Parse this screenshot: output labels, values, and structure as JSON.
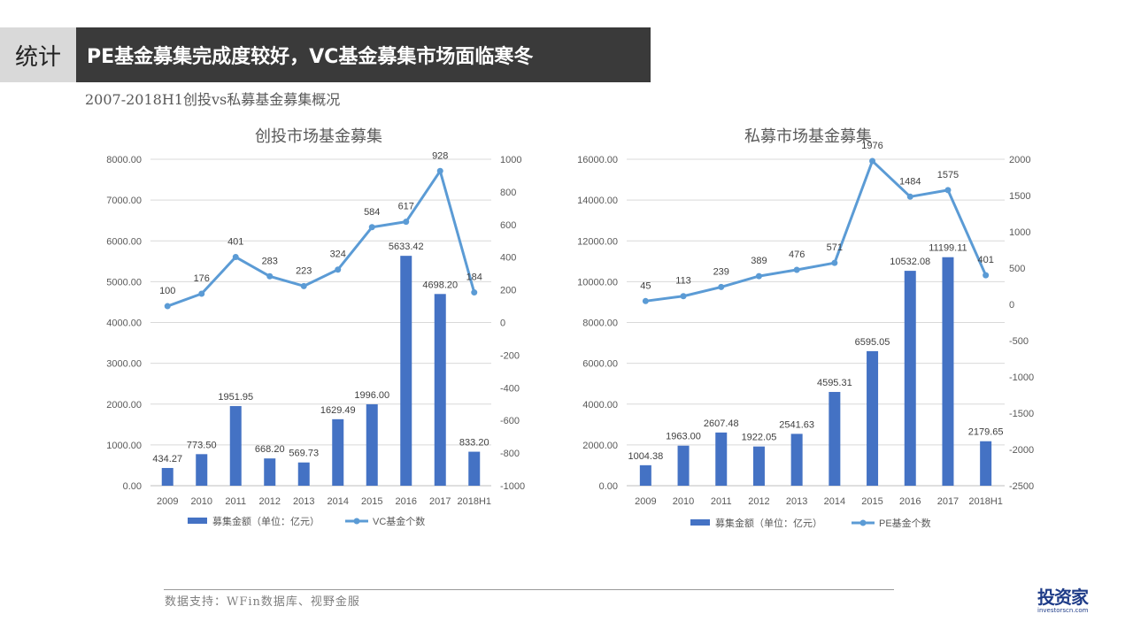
{
  "header": {
    "section_label": "统计",
    "title": "PE基金募集完成度较好，VC基金募集市场面临寒冬"
  },
  "subtitle": "2007-2018H1创投vs私募基金募集概况",
  "footer": {
    "source": "数据支持：WFin数据库、视野金服"
  },
  "logo": {
    "main": "投资家",
    "sub": "investorscn.com"
  },
  "colors": {
    "bar": "#4472c4",
    "line": "#5b9bd5",
    "grid": "#d9d9d9",
    "axis_text": "#595959"
  },
  "chart_data": [
    {
      "type": "bar+line",
      "title": "创投市场基金募集",
      "categories": [
        "2009",
        "2010",
        "2011",
        "2012",
        "2013",
        "2014",
        "2015",
        "2016",
        "2017",
        "2018H1"
      ],
      "bar_series": {
        "name": "募集金额（单位：亿元）",
        "values": [
          434.27,
          773.5,
          1951.95,
          668.2,
          569.73,
          1629.49,
          1996.0,
          5633.42,
          4698.2,
          833.2
        ],
        "labels": [
          "434.27",
          "773.50",
          "1951.95",
          "668.20",
          "569.73",
          "1629.49",
          "1996.00",
          "5633.42",
          "4698.20",
          "833.20"
        ]
      },
      "line_series": {
        "name": "VC基金个数",
        "values": [
          100,
          176,
          401,
          283,
          223,
          324,
          584,
          617,
          928,
          184
        ]
      },
      "y_left": {
        "min": 0,
        "max": 8000,
        "step": 1000,
        "format": "fixed2"
      },
      "y_right": {
        "min": -1000,
        "max": 1000,
        "step": 200
      },
      "legend": "bottom",
      "grid": true
    },
    {
      "type": "bar+line",
      "title": "私募市场基金募集",
      "categories": [
        "2009",
        "2010",
        "2011",
        "2012",
        "2013",
        "2014",
        "2015",
        "2016",
        "2017",
        "2018H1"
      ],
      "bar_series": {
        "name": "募集金额（单位：亿元）",
        "values": [
          1004.38,
          1963.0,
          2607.48,
          1922.05,
          2541.63,
          4595.31,
          6595.05,
          10532.08,
          11199.11,
          2179.65
        ],
        "labels": [
          "1004.38",
          "1963.00",
          "2607.48",
          "1922.05",
          "2541.63",
          "4595.31",
          "6595.05",
          "10532.08",
          "11199.11",
          "2179.65"
        ]
      },
      "line_series": {
        "name": "PE基金个数",
        "values": [
          45,
          113,
          239,
          389,
          476,
          571,
          1976,
          1484,
          1575,
          401
        ]
      },
      "y_left": {
        "min": 0,
        "max": 16000,
        "step": 2000,
        "format": "fixed2"
      },
      "y_right": {
        "min": -2500,
        "max": 2000,
        "step": 500
      },
      "legend": "bottom",
      "grid": true
    }
  ]
}
